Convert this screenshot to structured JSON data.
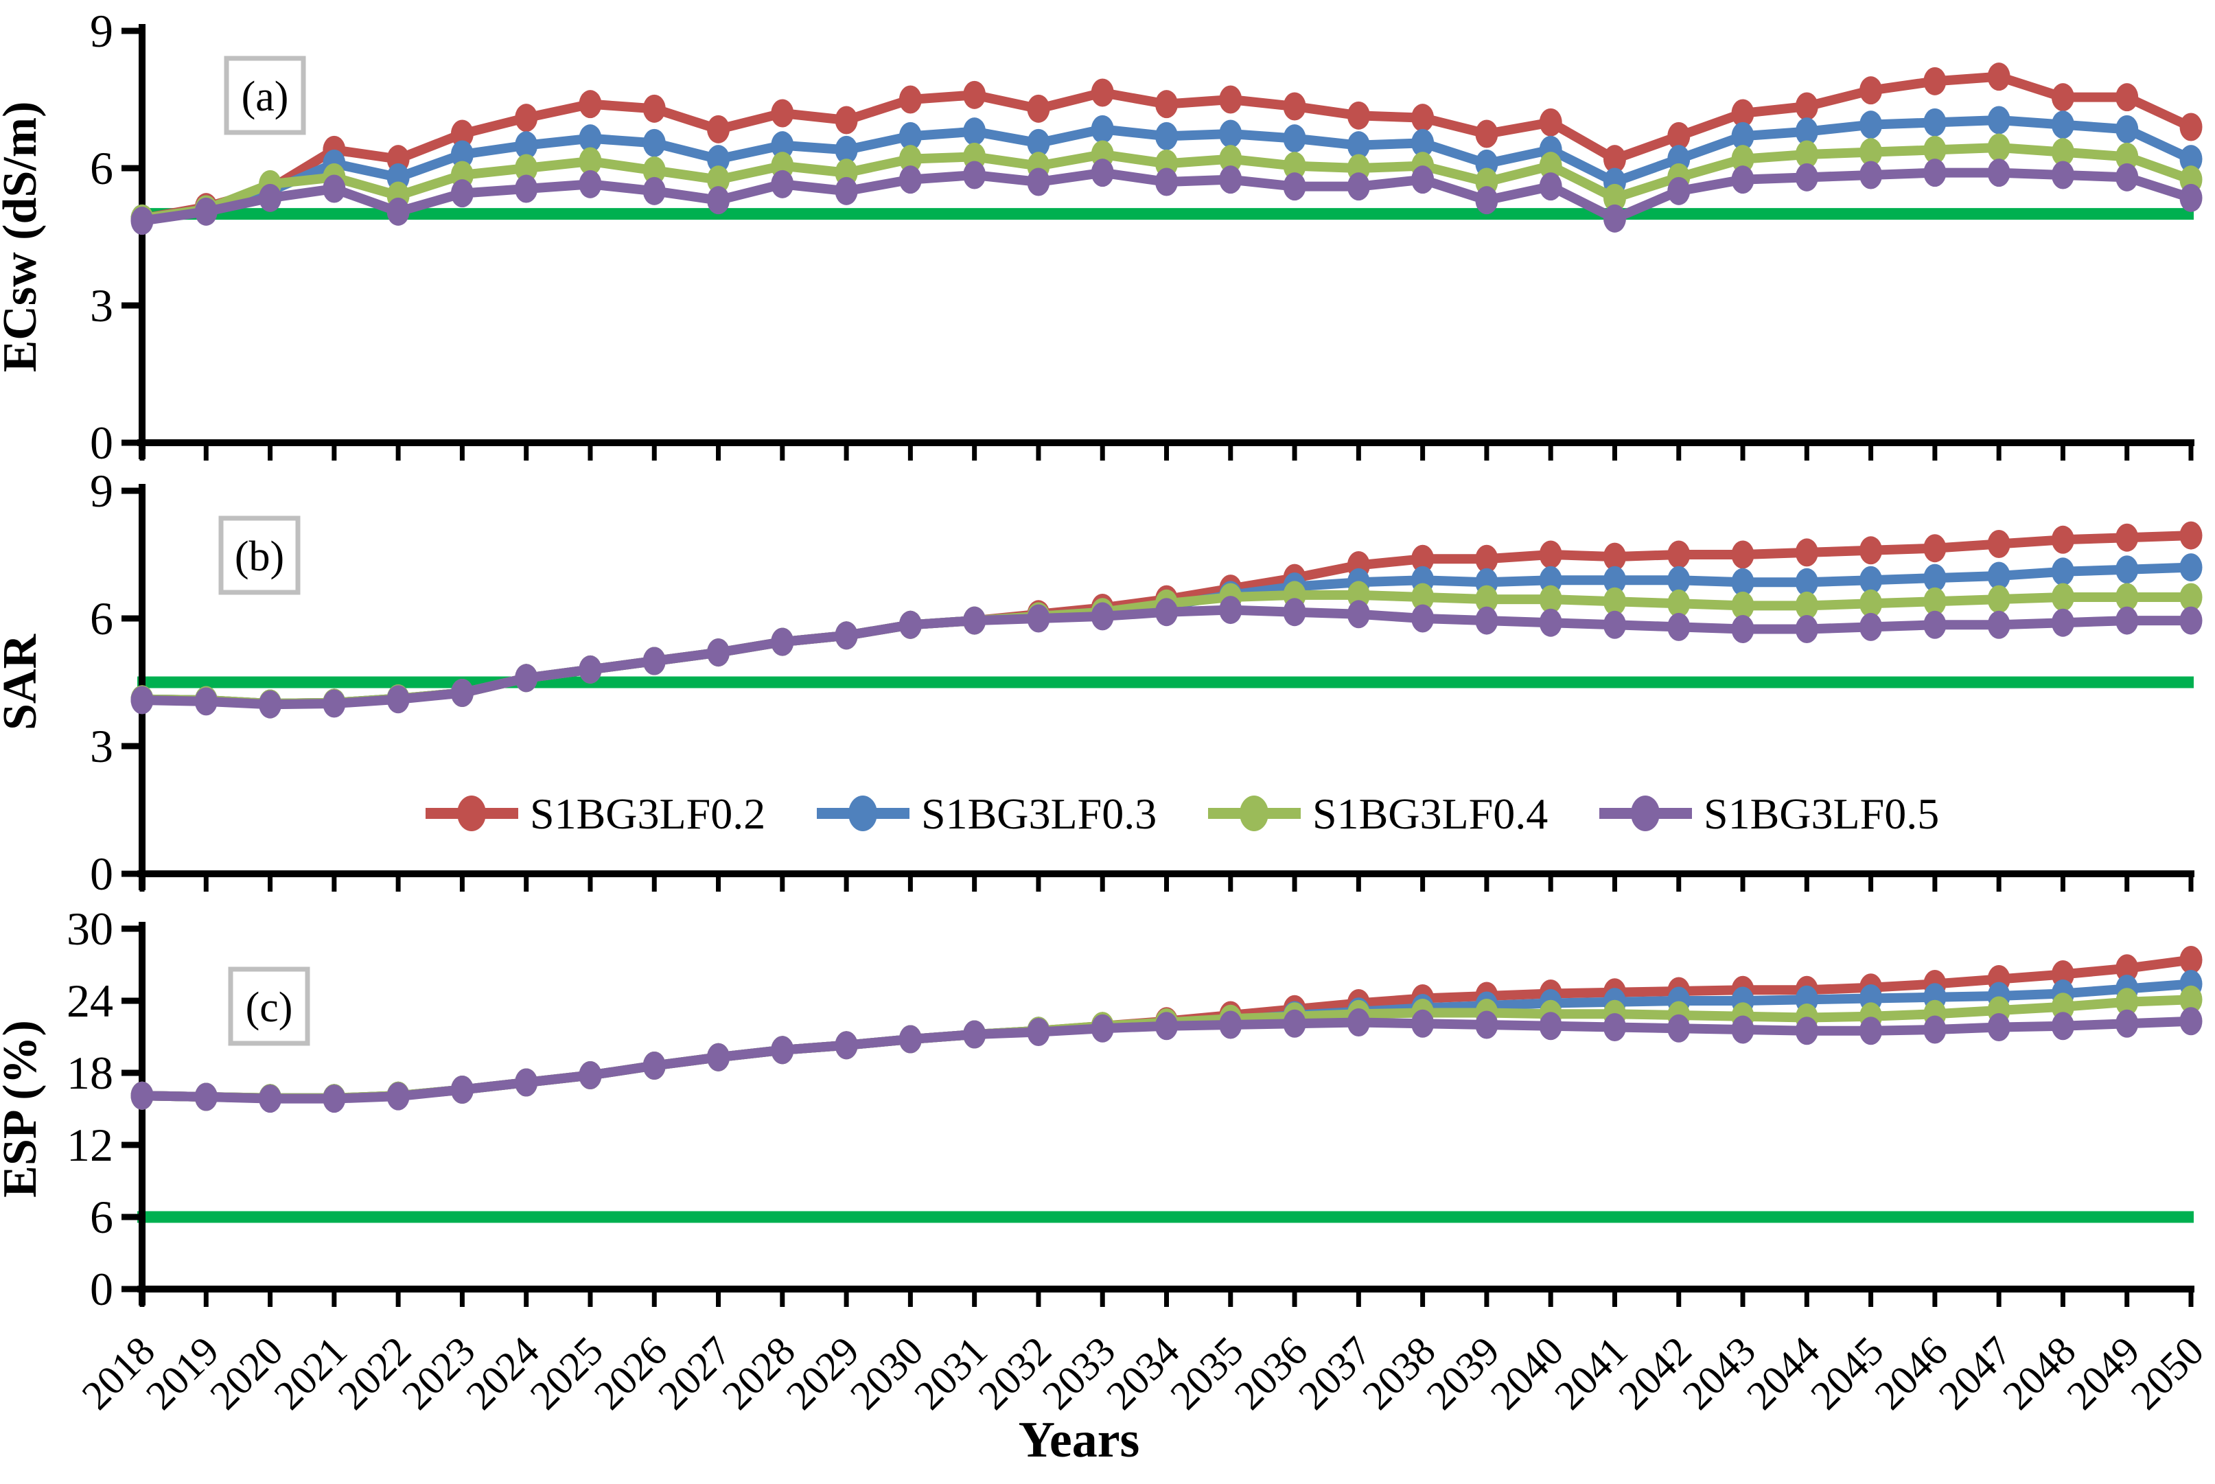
{
  "figure": {
    "xlabel": "Years",
    "legend": {
      "position": "inside panel b, lower center",
      "items": [
        {
          "label": "S1BG3LF0.2",
          "color": "#C0504D"
        },
        {
          "label": "S1BG3LF0.3",
          "color": "#4F81BD"
        },
        {
          "label": "S1BG3LF0.4",
          "color": "#9BBB59"
        },
        {
          "label": "S1BG3LF0.5",
          "color": "#8064A2"
        }
      ]
    },
    "colors": {
      "threshold_line": "#00B050",
      "axis": "#000000",
      "panel_label_box_border": "#BFBFBF",
      "background": "#FFFFFF"
    }
  },
  "chart_data": {
    "type": "line",
    "x_years": [
      2018,
      2019,
      2020,
      2021,
      2022,
      2023,
      2024,
      2025,
      2026,
      2027,
      2028,
      2029,
      2030,
      2031,
      2032,
      2033,
      2034,
      2035,
      2036,
      2037,
      2038,
      2039,
      2040,
      2041,
      2042,
      2043,
      2044,
      2045,
      2046,
      2047,
      2048,
      2049,
      2050
    ],
    "grid": false,
    "panels": [
      {
        "id": "a",
        "panel_label": "(a)",
        "ylabel": "ECsw (dS/m)",
        "ylim": [
          0,
          9
        ],
        "yticks": [
          0,
          3,
          6,
          9
        ],
        "threshold_value": 5,
        "series": [
          {
            "name": "S1BG3LF0.2",
            "color": "#C0504D",
            "values": [
              4.9,
              5.15,
              5.55,
              6.4,
              6.2,
              6.75,
              7.1,
              7.4,
              7.3,
              6.85,
              7.2,
              7.05,
              7.5,
              7.6,
              7.3,
              7.65,
              7.4,
              7.5,
              7.35,
              7.15,
              7.1,
              6.75,
              7.0,
              6.2,
              6.7,
              7.2,
              7.35,
              7.7,
              7.9,
              8.0,
              7.55,
              7.55,
              6.9
            ]
          },
          {
            "name": "S1BG3LF0.3",
            "color": "#4F81BD",
            "values": [
              4.9,
              5.1,
              5.5,
              6.1,
              5.8,
              6.3,
              6.5,
              6.65,
              6.55,
              6.2,
              6.5,
              6.4,
              6.7,
              6.8,
              6.55,
              6.85,
              6.7,
              6.75,
              6.65,
              6.5,
              6.55,
              6.1,
              6.4,
              5.7,
              6.2,
              6.7,
              6.8,
              6.95,
              7.0,
              7.05,
              6.95,
              6.85,
              6.2
            ]
          },
          {
            "name": "S1BG3LF0.4",
            "color": "#9BBB59",
            "values": [
              4.9,
              5.1,
              5.65,
              5.8,
              5.4,
              5.85,
              6.0,
              6.15,
              5.95,
              5.75,
              6.05,
              5.9,
              6.2,
              6.25,
              6.05,
              6.3,
              6.1,
              6.2,
              6.05,
              6.0,
              6.05,
              5.7,
              6.05,
              5.35,
              5.8,
              6.2,
              6.3,
              6.35,
              6.4,
              6.45,
              6.35,
              6.25,
              5.75
            ]
          },
          {
            "name": "S1BG3LF0.5",
            "color": "#8064A2",
            "values": [
              4.85,
              5.05,
              5.35,
              5.55,
              5.05,
              5.45,
              5.55,
              5.65,
              5.5,
              5.3,
              5.65,
              5.5,
              5.75,
              5.85,
              5.7,
              5.9,
              5.7,
              5.75,
              5.6,
              5.6,
              5.75,
              5.3,
              5.6,
              4.9,
              5.5,
              5.75,
              5.8,
              5.85,
              5.9,
              5.9,
              5.85,
              5.8,
              5.35
            ]
          }
        ]
      },
      {
        "id": "b",
        "panel_label": "(b)",
        "ylabel": "SAR",
        "ylim": [
          0,
          9
        ],
        "yticks": [
          0,
          3,
          6,
          9
        ],
        "threshold_value": 4.5,
        "series": [
          {
            "name": "S1BG3LF0.2",
            "color": "#C0504D",
            "values": [
              4.1,
              4.08,
              4.0,
              4.02,
              4.12,
              4.25,
              4.6,
              4.8,
              5.0,
              5.2,
              5.45,
              5.6,
              5.85,
              5.95,
              6.1,
              6.25,
              6.45,
              6.7,
              6.95,
              7.25,
              7.4,
              7.4,
              7.5,
              7.45,
              7.5,
              7.5,
              7.55,
              7.6,
              7.65,
              7.75,
              7.85,
              7.9,
              7.95
            ]
          },
          {
            "name": "S1BG3LF0.3",
            "color": "#4F81BD",
            "values": [
              4.1,
              4.08,
              4.0,
              4.02,
              4.12,
              4.25,
              4.6,
              4.8,
              5.0,
              5.2,
              5.45,
              5.6,
              5.85,
              5.95,
              6.05,
              6.15,
              6.3,
              6.55,
              6.75,
              6.85,
              6.9,
              6.85,
              6.9,
              6.9,
              6.9,
              6.85,
              6.85,
              6.9,
              6.95,
              7.0,
              7.1,
              7.15,
              7.2
            ]
          },
          {
            "name": "S1BG3LF0.4",
            "color": "#9BBB59",
            "values": [
              4.1,
              4.08,
              4.0,
              4.02,
              4.12,
              4.25,
              4.6,
              4.8,
              5.0,
              5.2,
              5.45,
              5.6,
              5.85,
              5.95,
              6.05,
              6.15,
              6.35,
              6.5,
              6.55,
              6.55,
              6.5,
              6.45,
              6.45,
              6.4,
              6.35,
              6.3,
              6.3,
              6.35,
              6.4,
              6.45,
              6.5,
              6.5,
              6.5
            ]
          },
          {
            "name": "S1BG3LF0.5",
            "color": "#8064A2",
            "values": [
              4.08,
              4.05,
              3.98,
              4.0,
              4.1,
              4.25,
              4.6,
              4.8,
              5.0,
              5.2,
              5.45,
              5.6,
              5.85,
              5.95,
              6.0,
              6.05,
              6.15,
              6.2,
              6.15,
              6.1,
              6.0,
              5.95,
              5.9,
              5.85,
              5.8,
              5.75,
              5.75,
              5.8,
              5.85,
              5.85,
              5.9,
              5.95,
              5.95
            ]
          }
        ]
      },
      {
        "id": "c",
        "panel_label": "(c)",
        "ylabel": "ESP (%)",
        "ylim": [
          0,
          30
        ],
        "yticks": [
          0,
          6,
          12,
          18,
          24,
          30
        ],
        "threshold_value": 6,
        "series": [
          {
            "name": "S1BG3LF0.2",
            "color": "#C0504D",
            "values": [
              16.1,
              16.0,
              15.9,
              15.9,
              16.1,
              16.6,
              17.2,
              17.8,
              18.6,
              19.3,
              19.9,
              20.3,
              20.8,
              21.2,
              21.5,
              21.9,
              22.3,
              22.8,
              23.3,
              23.8,
              24.2,
              24.4,
              24.6,
              24.7,
              24.8,
              24.9,
              24.9,
              25.1,
              25.4,
              25.8,
              26.2,
              26.7,
              27.4
            ]
          },
          {
            "name": "S1BG3LF0.3",
            "color": "#4F81BD",
            "values": [
              16.1,
              16.0,
              15.9,
              15.9,
              16.1,
              16.6,
              17.2,
              17.8,
              18.6,
              19.3,
              19.9,
              20.3,
              20.8,
              21.2,
              21.5,
              21.8,
              22.1,
              22.4,
              22.8,
              23.1,
              23.4,
              23.6,
              23.8,
              23.9,
              24.0,
              24.0,
              24.1,
              24.2,
              24.3,
              24.4,
              24.6,
              25.0,
              25.4
            ]
          },
          {
            "name": "S1BG3LF0.4",
            "color": "#9BBB59",
            "values": [
              16.1,
              16.0,
              15.9,
              15.9,
              16.1,
              16.6,
              17.2,
              17.8,
              18.6,
              19.3,
              19.9,
              20.3,
              20.8,
              21.2,
              21.5,
              21.9,
              22.2,
              22.5,
              22.7,
              22.9,
              23.0,
              23.0,
              22.9,
              22.9,
              22.8,
              22.7,
              22.6,
              22.7,
              22.9,
              23.2,
              23.5,
              23.9,
              24.1
            ]
          },
          {
            "name": "S1BG3LF0.5",
            "color": "#8064A2",
            "values": [
              16.1,
              16.0,
              15.85,
              15.85,
              16.05,
              16.6,
              17.2,
              17.8,
              18.6,
              19.3,
              19.9,
              20.3,
              20.8,
              21.2,
              21.4,
              21.7,
              21.9,
              22.0,
              22.1,
              22.2,
              22.1,
              22.0,
              21.9,
              21.8,
              21.7,
              21.6,
              21.5,
              21.5,
              21.6,
              21.8,
              21.9,
              22.1,
              22.3
            ]
          }
        ]
      }
    ]
  }
}
